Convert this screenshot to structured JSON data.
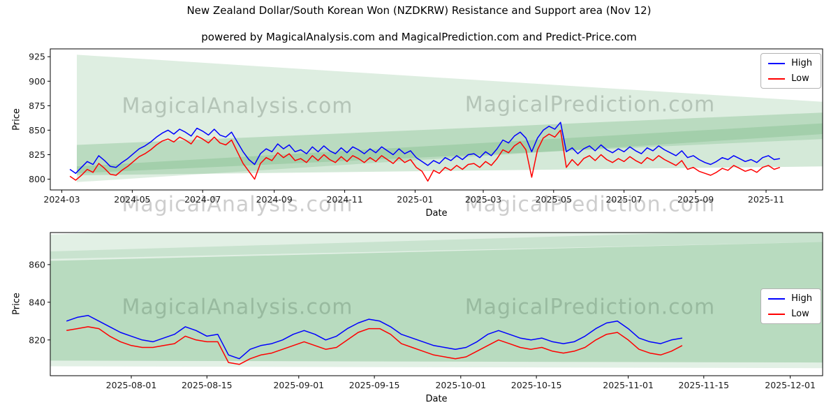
{
  "page": {
    "title": "New Zealand Dollar/South Korean Won (NZDKRW) Resistance and Support area (Nov 12)",
    "subtitle": "powered by MagicalAnalysis.com and MagicalPrediction.com and Predict-Price.com"
  },
  "watermarks": {
    "analysis": "MagicalAnalysis.com",
    "prediction": "MagicalPrediction.com"
  },
  "colors": {
    "band": "#3d9b4f",
    "high": "#0000ff",
    "low": "#ff0000",
    "axis": "#000000",
    "watermark_text": "#7d7d7d"
  },
  "chart_data": [
    {
      "type": "line",
      "ylabel": "Price",
      "xlabel": "Date",
      "x_start": "2024-03-08",
      "x_step_days": 5,
      "xlim": [
        "2024-02-20",
        "2025-12-20"
      ],
      "ylim": [
        789,
        933
      ],
      "yticks": [
        800,
        825,
        850,
        875,
        900,
        925
      ],
      "xticks": [
        {
          "t": "2024-03-01",
          "label": "2024-03"
        },
        {
          "t": "2024-05-01",
          "label": "2024-05"
        },
        {
          "t": "2024-07-01",
          "label": "2024-07"
        },
        {
          "t": "2024-09-01",
          "label": "2024-09"
        },
        {
          "t": "2024-11-01",
          "label": "2024-11"
        },
        {
          "t": "2025-01-01",
          "label": "2025-01"
        },
        {
          "t": "2025-03-01",
          "label": "2025-03"
        },
        {
          "t": "2025-05-01",
          "label": "2025-05"
        },
        {
          "t": "2025-07-01",
          "label": "2025-07"
        },
        {
          "t": "2025-09-01",
          "label": "2025-09"
        },
        {
          "t": "2025-11-01",
          "label": "2025-11"
        }
      ],
      "series": [
        {
          "name": "High",
          "color": "#0000ff",
          "values": [
            810,
            806,
            812,
            818,
            815,
            824,
            819,
            813,
            812,
            817,
            821,
            826,
            831,
            834,
            838,
            843,
            847,
            850,
            846,
            851,
            848,
            844,
            852,
            849,
            845,
            851,
            845,
            843,
            848,
            838,
            828,
            820,
            815,
            826,
            831,
            828,
            836,
            831,
            835,
            828,
            830,
            826,
            833,
            828,
            834,
            829,
            826,
            832,
            827,
            833,
            830,
            826,
            831,
            827,
            833,
            829,
            825,
            831,
            826,
            829,
            822,
            818,
            814,
            819,
            816,
            822,
            819,
            824,
            820,
            825,
            826,
            822,
            828,
            824,
            831,
            840,
            837,
            844,
            848,
            842,
            828,
            842,
            850,
            854,
            851,
            858,
            828,
            832,
            826,
            831,
            834,
            829,
            835,
            830,
            827,
            831,
            828,
            833,
            829,
            826,
            832,
            829,
            834,
            830,
            827,
            824,
            829,
            822,
            824,
            820,
            817,
            815,
            818,
            822,
            820,
            824,
            821,
            818,
            820,
            817,
            822,
            824,
            820,
            821
          ]
        },
        {
          "name": "Low",
          "color": "#ff0000",
          "values": [
            803,
            799,
            804,
            810,
            807,
            816,
            811,
            805,
            804,
            809,
            813,
            818,
            823,
            826,
            830,
            835,
            839,
            841,
            838,
            843,
            840,
            836,
            844,
            841,
            837,
            843,
            837,
            835,
            840,
            828,
            816,
            808,
            800,
            816,
            822,
            819,
            827,
            822,
            826,
            819,
            821,
            817,
            824,
            819,
            825,
            820,
            817,
            823,
            818,
            824,
            821,
            817,
            822,
            818,
            824,
            820,
            816,
            822,
            817,
            820,
            812,
            808,
            798,
            809,
            806,
            812,
            809,
            814,
            810,
            815,
            816,
            812,
            818,
            814,
            821,
            830,
            827,
            834,
            838,
            830,
            802,
            830,
            842,
            846,
            843,
            850,
            812,
            820,
            814,
            821,
            824,
            819,
            825,
            820,
            817,
            821,
            818,
            823,
            819,
            816,
            822,
            819,
            824,
            820,
            817,
            814,
            819,
            810,
            812,
            808,
            806,
            804,
            807,
            811,
            809,
            814,
            811,
            808,
            810,
            807,
            812,
            814,
            810,
            812
          ]
        }
      ],
      "bands": [
        {
          "opacity": 0.17,
          "points": [
            [
              "2024-03-14",
              927
            ],
            [
              "2025-12-20",
              879
            ],
            [
              "2025-12-20",
              846
            ],
            [
              "2024-03-14",
              797
            ]
          ]
        },
        {
          "opacity": 0.22,
          "points": [
            [
              "2024-03-14",
              835
            ],
            [
              "2025-12-20",
              868
            ],
            [
              "2025-12-20",
              813
            ],
            [
              "2024-03-14",
              804
            ]
          ]
        },
        {
          "opacity": 0.18,
          "points": [
            [
              "2024-03-14",
              813
            ],
            [
              "2025-12-20",
              857
            ],
            [
              "2025-12-20",
              841
            ],
            [
              "2024-03-14",
              806
            ]
          ]
        }
      ]
    },
    {
      "type": "line",
      "ylabel": "Price",
      "xlabel": "Date",
      "x_start": "2025-07-20",
      "x_step_days": 2,
      "xlim": [
        "2025-07-17",
        "2025-12-07"
      ],
      "ylim": [
        801,
        877
      ],
      "yticks": [
        820,
        840,
        860
      ],
      "xticks": [
        {
          "t": "2025-08-01",
          "label": "2025-08-01"
        },
        {
          "t": "2025-08-15",
          "label": "2025-08-15"
        },
        {
          "t": "2025-09-01",
          "label": "2025-09-01"
        },
        {
          "t": "2025-09-15",
          "label": "2025-09-15"
        },
        {
          "t": "2025-10-01",
          "label": "2025-10-01"
        },
        {
          "t": "2025-10-15",
          "label": "2025-10-15"
        },
        {
          "t": "2025-11-01",
          "label": "2025-11-01"
        },
        {
          "t": "2025-11-15",
          "label": "2025-11-15"
        },
        {
          "t": "2025-12-01",
          "label": "2025-12-01"
        }
      ],
      "series": [
        {
          "name": "High",
          "color": "#0000ff",
          "values": [
            830,
            832,
            833,
            830,
            827,
            824,
            822,
            820,
            819,
            821,
            823,
            827,
            825,
            822,
            823,
            812,
            810,
            815,
            817,
            818,
            820,
            823,
            825,
            823,
            820,
            822,
            826,
            829,
            831,
            830,
            827,
            823,
            821,
            819,
            817,
            816,
            815,
            816,
            819,
            823,
            825,
            823,
            821,
            820,
            821,
            819,
            818,
            819,
            822,
            826,
            829,
            830,
            826,
            821,
            819,
            818,
            820,
            821
          ]
        },
        {
          "name": "Low",
          "color": "#ff0000",
          "values": [
            825,
            826,
            827,
            826,
            822,
            819,
            817,
            816,
            816,
            817,
            818,
            822,
            820,
            819,
            819,
            808,
            807,
            810,
            812,
            813,
            815,
            817,
            819,
            817,
            815,
            816,
            820,
            824,
            826,
            826,
            823,
            818,
            816,
            814,
            812,
            811,
            810,
            811,
            814,
            817,
            820,
            818,
            816,
            815,
            816,
            814,
            813,
            814,
            816,
            820,
            823,
            824,
            820,
            815,
            813,
            812,
            814,
            817
          ]
        }
      ],
      "bands": [
        {
          "opacity": 0.15,
          "points": [
            [
              "2025-07-17",
              867
            ],
            [
              "2025-12-07",
              879
            ],
            [
              "2025-12-07",
              805
            ],
            [
              "2025-07-17",
              806
            ]
          ]
        },
        {
          "opacity": 0.25,
          "points": [
            [
              "2025-07-17",
              862
            ],
            [
              "2025-12-07",
              872
            ],
            [
              "2025-12-07",
              808
            ],
            [
              "2025-07-17",
              809
            ]
          ]
        },
        {
          "opacity": 0.15,
          "points": [
            [
              "2025-07-17",
              876
            ],
            [
              "2025-12-07",
              888
            ],
            [
              "2025-12-07",
              872
            ],
            [
              "2025-07-17",
              863
            ]
          ]
        }
      ]
    }
  ]
}
